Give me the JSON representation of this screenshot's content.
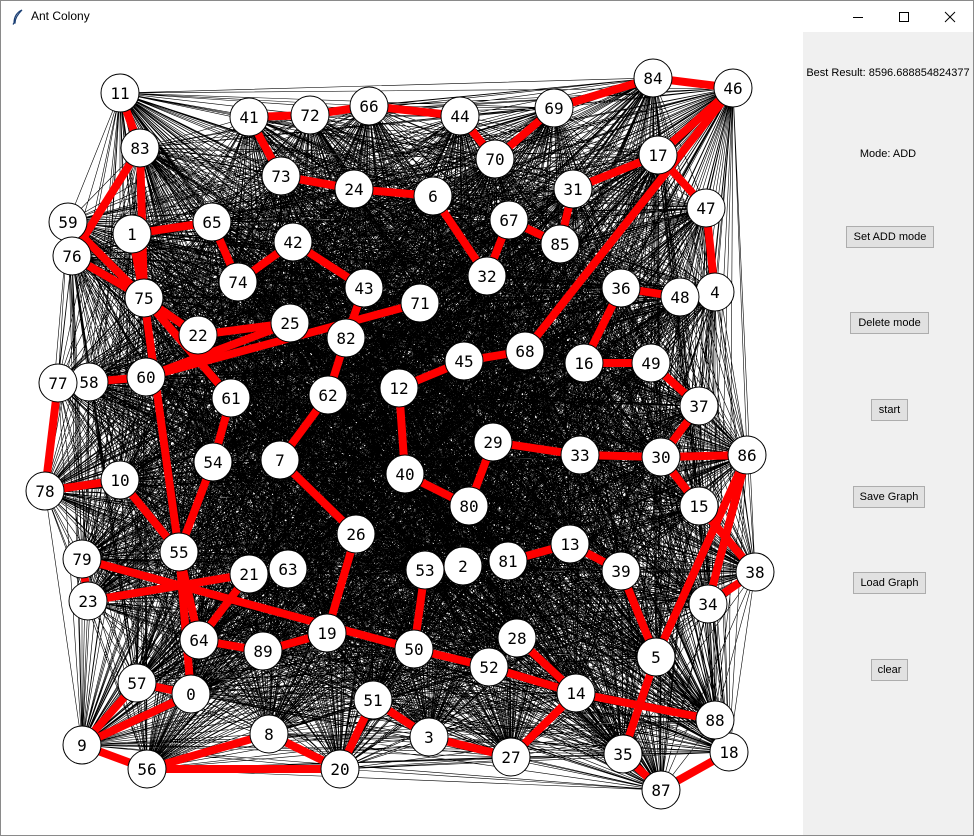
{
  "window": {
    "title": "Ant Colony"
  },
  "controls": {
    "best_result": "Best Result: 8596.688854824377",
    "mode": "Mode: ADD",
    "buttons": [
      {
        "id": "set-add-mode",
        "label": "Set ADD mode"
      },
      {
        "id": "delete-mode",
        "label": "Delete mode"
      },
      {
        "id": "start",
        "label": "start"
      },
      {
        "id": "save-graph",
        "label": "Save Graph"
      },
      {
        "id": "load-graph",
        "label": "Load Graph"
      },
      {
        "id": "clear",
        "label": "clear"
      }
    ]
  },
  "graph": {
    "nodes": [
      {
        "id": "0"
      },
      {
        "id": "1"
      },
      {
        "id": "3"
      },
      {
        "id": "4"
      },
      {
        "id": "5"
      },
      {
        "id": "6"
      },
      {
        "id": "7"
      },
      {
        "id": "8"
      },
      {
        "id": "9"
      },
      {
        "id": "10"
      },
      {
        "id": "11"
      },
      {
        "id": "12"
      },
      {
        "id": "13"
      },
      {
        "id": "14"
      },
      {
        "id": "15"
      },
      {
        "id": "16"
      },
      {
        "id": "17"
      },
      {
        "id": "18"
      },
      {
        "id": "19"
      },
      {
        "id": "20"
      },
      {
        "id": "21"
      },
      {
        "id": "22"
      },
      {
        "id": "23"
      },
      {
        "id": "24"
      },
      {
        "id": "25"
      },
      {
        "id": "26"
      },
      {
        "id": "27"
      },
      {
        "id": "28"
      },
      {
        "id": "29"
      },
      {
        "id": "30"
      },
      {
        "id": "31"
      },
      {
        "id": "32"
      },
      {
        "id": "33"
      },
      {
        "id": "34"
      },
      {
        "id": "35"
      },
      {
        "id": "36"
      },
      {
        "id": "37"
      },
      {
        "id": "38"
      },
      {
        "id": "39"
      },
      {
        "id": "40"
      },
      {
        "id": "41"
      },
      {
        "id": "42"
      },
      {
        "id": "43"
      },
      {
        "id": "44"
      },
      {
        "id": "45"
      },
      {
        "id": "46"
      },
      {
        "id": "47"
      },
      {
        "id": "48"
      },
      {
        "id": "49"
      },
      {
        "id": "50"
      },
      {
        "id": "51"
      },
      {
        "id": "52"
      },
      {
        "id": "53"
      },
      {
        "id": "54"
      },
      {
        "id": "55"
      },
      {
        "id": "56"
      },
      {
        "id": "57"
      },
      {
        "id": "58"
      },
      {
        "id": "59"
      },
      {
        "id": "60"
      },
      {
        "id": "61"
      },
      {
        "id": "62"
      },
      {
        "id": "63"
      },
      {
        "id": "64"
      },
      {
        "id": "65"
      },
      {
        "id": "66"
      },
      {
        "id": "67"
      },
      {
        "id": "68"
      },
      {
        "id": "69"
      },
      {
        "id": "70"
      },
      {
        "id": "71"
      },
      {
        "id": "72"
      },
      {
        "id": "73"
      },
      {
        "id": "74"
      },
      {
        "id": "75"
      },
      {
        "id": "76"
      },
      {
        "id": "77"
      },
      {
        "id": "78"
      },
      {
        "id": "79"
      },
      {
        "id": "80"
      },
      {
        "id": "81"
      },
      {
        "id": "82"
      },
      {
        "id": "83"
      },
      {
        "id": "84"
      },
      {
        "id": "85"
      },
      {
        "id": "86"
      },
      {
        "id": "87"
      },
      {
        "id": "88"
      },
      {
        "id": "89"
      },
      {
        "id": "2"
      }
    ],
    "best_path_edges": [
      [
        "84",
        "46"
      ],
      [
        "84",
        "69"
      ],
      [
        "69",
        "70"
      ],
      [
        "70",
        "44"
      ],
      [
        "44",
        "66"
      ],
      [
        "66",
        "72"
      ],
      [
        "72",
        "41"
      ],
      [
        "41",
        "73"
      ],
      [
        "73",
        "24"
      ],
      [
        "24",
        "6"
      ],
      [
        "6",
        "32"
      ],
      [
        "32",
        "67"
      ],
      [
        "67",
        "85"
      ],
      [
        "85",
        "31"
      ],
      [
        "31",
        "17"
      ],
      [
        "17",
        "47"
      ],
      [
        "47",
        "4"
      ],
      [
        "4",
        "48"
      ],
      [
        "48",
        "36"
      ],
      [
        "36",
        "16"
      ],
      [
        "16",
        "49"
      ],
      [
        "49",
        "37"
      ],
      [
        "37",
        "30"
      ],
      [
        "30",
        "15"
      ],
      [
        "15",
        "38"
      ],
      [
        "38",
        "34"
      ],
      [
        "34",
        "86"
      ],
      [
        "86",
        "30"
      ],
      [
        "30",
        "33"
      ],
      [
        "33",
        "29"
      ],
      [
        "29",
        "80"
      ],
      [
        "80",
        "40"
      ],
      [
        "40",
        "12"
      ],
      [
        "12",
        "45"
      ],
      [
        "45",
        "68"
      ],
      [
        "68",
        "46"
      ],
      [
        "17",
        "46"
      ],
      [
        "11",
        "83"
      ],
      [
        "83",
        "76"
      ],
      [
        "76",
        "75"
      ],
      [
        "75",
        "59"
      ],
      [
        "83",
        "75"
      ],
      [
        "1",
        "75"
      ],
      [
        "1",
        "65"
      ],
      [
        "65",
        "74"
      ],
      [
        "74",
        "42"
      ],
      [
        "42",
        "43"
      ],
      [
        "43",
        "82"
      ],
      [
        "82",
        "62"
      ],
      [
        "62",
        "7"
      ],
      [
        "7",
        "26"
      ],
      [
        "26",
        "19"
      ],
      [
        "19",
        "89"
      ],
      [
        "89",
        "64"
      ],
      [
        "64",
        "21"
      ],
      [
        "21",
        "23"
      ],
      [
        "23",
        "79"
      ],
      [
        "79",
        "50"
      ],
      [
        "50",
        "53"
      ],
      [
        "53",
        "2"
      ],
      [
        "81",
        "13"
      ],
      [
        "13",
        "39"
      ],
      [
        "39",
        "5"
      ],
      [
        "5",
        "86"
      ],
      [
        "5",
        "35"
      ],
      [
        "35",
        "87"
      ],
      [
        "87",
        "18"
      ],
      [
        "14",
        "88"
      ],
      [
        "14",
        "28"
      ],
      [
        "14",
        "52"
      ],
      [
        "52",
        "50"
      ],
      [
        "14",
        "27"
      ],
      [
        "27",
        "3"
      ],
      [
        "3",
        "51"
      ],
      [
        "51",
        "20"
      ],
      [
        "20",
        "8"
      ],
      [
        "8",
        "56"
      ],
      [
        "56",
        "9"
      ],
      [
        "9",
        "57"
      ],
      [
        "57",
        "0"
      ],
      [
        "0",
        "55"
      ],
      [
        "55",
        "10"
      ],
      [
        "10",
        "78"
      ],
      [
        "78",
        "77"
      ],
      [
        "77",
        "58"
      ],
      [
        "58",
        "60"
      ],
      [
        "60",
        "25"
      ],
      [
        "60",
        "71"
      ],
      [
        "25",
        "22"
      ],
      [
        "22",
        "75"
      ],
      [
        "75",
        "55"
      ],
      [
        "75",
        "61"
      ],
      [
        "61",
        "54"
      ],
      [
        "54",
        "55"
      ],
      [
        "55",
        "64"
      ],
      [
        "9",
        "0"
      ],
      [
        "20",
        "56"
      ]
    ]
  }
}
